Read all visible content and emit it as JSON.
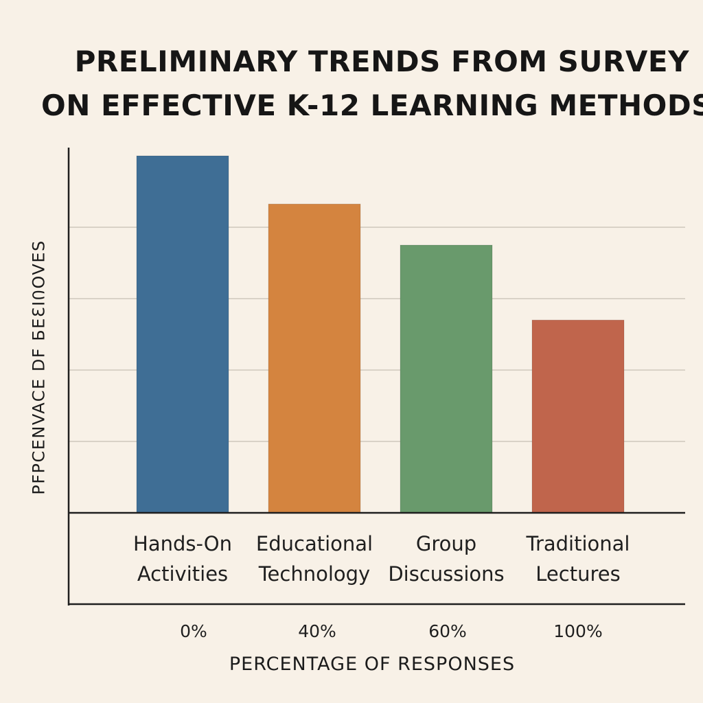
{
  "chart_data": {
    "type": "bar",
    "title_lines": [
      "PRELIMINARY TRENDS FROM SURVEY",
      "ON EFFECTIVE K-12 LEARNING METHODS"
    ],
    "ylabel": "PFPCENVACE DF БЕƐΙᲘOVES",
    "xlabel": "PERCENTAGE OF RESPONSES",
    "categories": [
      [
        "Hands-On",
        "Activities"
      ],
      [
        "Educational",
        "Technology"
      ],
      [
        "Group",
        "Discussions"
      ],
      [
        "Traditional",
        "Lectures"
      ]
    ],
    "values": [
      100,
      86.5,
      75,
      54
    ],
    "colors": [
      "#3f6e95",
      "#d4843f",
      "#699a6c",
      "#c0654c"
    ],
    "ylim": [
      0,
      100
    ],
    "grid": true,
    "x_tick_labels": [
      "0%",
      "40%",
      "60%",
      "100%"
    ]
  }
}
